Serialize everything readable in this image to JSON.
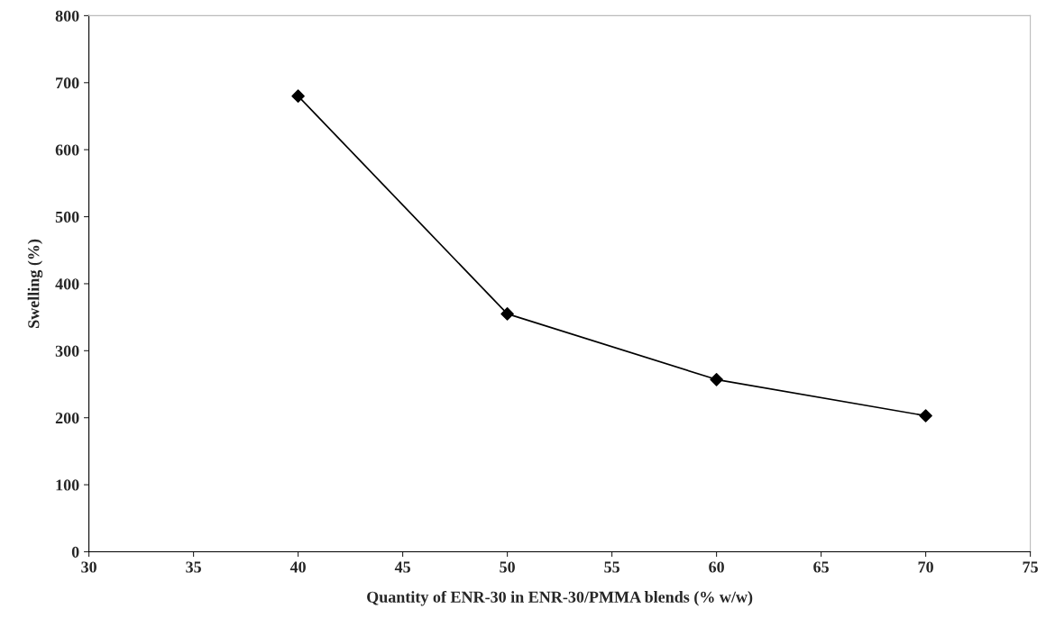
{
  "chart_data": {
    "type": "line",
    "xlabel": "Quantity of ENR-30 in ENR-30/PMMA blends (% w/w)",
    "ylabel": "Swelling (%)",
    "x": [
      40,
      50,
      60,
      70
    ],
    "series": [
      {
        "color": "#000000",
        "values": [
          680,
          355,
          257,
          203
        ]
      }
    ],
    "xlim": [
      30,
      75
    ],
    "xticks": [
      30,
      35,
      40,
      45,
      50,
      55,
      60,
      65,
      70,
      75
    ],
    "ylim": [
      0,
      800
    ],
    "yticks": [
      0,
      100,
      200,
      300,
      400,
      500,
      600,
      700,
      800
    ],
    "marker": "diamond",
    "line_style": "solid",
    "grid": false,
    "legend": false
  }
}
